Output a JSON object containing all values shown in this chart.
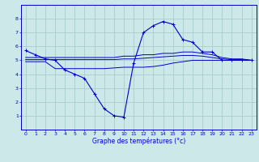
{
  "title": "Graphe des températures (°c)",
  "bg_color": "#cce8e8",
  "line_color": "#0000cc",
  "grid_color": "#aacccc",
  "xlim": [
    -0.5,
    23.5
  ],
  "ylim": [
    0,
    9
  ],
  "yticks": [
    1,
    2,
    3,
    4,
    5,
    6,
    7,
    8
  ],
  "xticks": [
    0,
    1,
    2,
    3,
    4,
    5,
    6,
    7,
    8,
    9,
    10,
    11,
    12,
    13,
    14,
    15,
    16,
    17,
    18,
    19,
    20,
    21,
    22,
    23
  ],
  "curve_actual": {
    "x": [
      0,
      1,
      2,
      3,
      4,
      5,
      6,
      7,
      8,
      9,
      10,
      11,
      12,
      13,
      14,
      15,
      16,
      17,
      18,
      19,
      20,
      21,
      22,
      23
    ],
    "y": [
      5.7,
      5.4,
      5.1,
      5.0,
      4.3,
      4.0,
      3.7,
      2.6,
      1.5,
      1.0,
      0.9,
      4.8,
      7.0,
      7.5,
      7.8,
      7.6,
      6.5,
      6.3,
      5.6,
      5.6,
      5.0,
      5.0,
      5.0,
      5.0
    ]
  },
  "curve_line1": {
    "x": [
      0,
      1,
      2,
      3,
      4,
      5,
      6,
      7,
      8,
      9,
      10,
      11,
      12,
      13,
      14,
      15,
      16,
      17,
      18,
      19,
      20,
      21,
      22,
      23
    ],
    "y": [
      5.2,
      5.2,
      5.2,
      5.2,
      5.2,
      5.2,
      5.2,
      5.2,
      5.2,
      5.2,
      5.3,
      5.3,
      5.4,
      5.4,
      5.5,
      5.5,
      5.6,
      5.6,
      5.5,
      5.4,
      5.2,
      5.1,
      5.1,
      5.0
    ]
  },
  "curve_line2": {
    "x": [
      0,
      1,
      2,
      3,
      4,
      5,
      6,
      7,
      8,
      9,
      10,
      11,
      12,
      13,
      14,
      15,
      16,
      17,
      18,
      19,
      20,
      21,
      22,
      23
    ],
    "y": [
      5.05,
      5.05,
      5.05,
      5.05,
      5.05,
      5.05,
      5.05,
      5.05,
      5.05,
      5.05,
      5.1,
      5.1,
      5.15,
      5.2,
      5.25,
      5.3,
      5.35,
      5.35,
      5.3,
      5.2,
      5.1,
      5.05,
      5.05,
      5.0
    ]
  },
  "curve_line3": {
    "x": [
      0,
      2,
      3,
      4,
      5,
      6,
      7,
      8,
      9,
      10,
      11,
      12,
      13,
      14,
      15,
      16,
      17,
      18,
      19,
      20,
      21,
      22,
      23
    ],
    "y": [
      4.9,
      4.9,
      4.4,
      4.4,
      4.4,
      4.4,
      4.4,
      4.4,
      4.45,
      4.5,
      4.5,
      4.5,
      4.55,
      4.65,
      4.8,
      4.9,
      5.0,
      5.0,
      5.0,
      5.0,
      5.0,
      5.0,
      5.0
    ]
  }
}
